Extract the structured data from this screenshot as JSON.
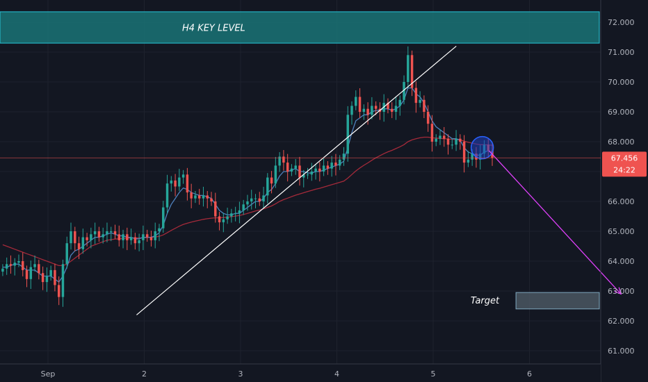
{
  "chart_data": {
    "type": "candlestick",
    "title": "",
    "xlabel": "",
    "ylabel": "",
    "ylim": [
      60.3,
      72.6
    ],
    "y_ticks": [
      "72.000",
      "71.000",
      "70.000",
      "69.000",
      "68.000",
      "67.000",
      "66.000",
      "65.000",
      "64.000",
      "63.000",
      "62.000",
      "61.000"
    ],
    "x_ticks": [
      {
        "label": "Sep",
        "t": 0
      },
      {
        "label": "2",
        "t": 1
      },
      {
        "label": "3",
        "t": 2
      },
      {
        "label": "4",
        "t": 3
      },
      {
        "label": "5",
        "t": 4
      },
      {
        "label": "6",
        "t": 5
      }
    ],
    "candle_interval_days": 0.04167,
    "first_candle_t": -0.47,
    "closes": [
      63.75,
      63.9,
      63.85,
      63.95,
      64.0,
      63.7,
      63.4,
      63.8,
      63.9,
      63.6,
      63.3,
      63.5,
      63.7,
      63.2,
      62.8,
      63.9,
      64.6,
      65.0,
      64.6,
      64.4,
      64.8,
      64.7,
      64.9,
      65.0,
      64.8,
      64.9,
      65.0,
      65.0,
      64.9,
      64.7,
      64.9,
      64.7,
      64.8,
      64.6,
      64.7,
      64.9,
      64.8,
      64.7,
      65.0,
      65.1,
      65.8,
      66.6,
      66.7,
      66.5,
      66.8,
      66.9,
      66.3,
      66.1,
      66.2,
      66.1,
      66.2,
      66.1,
      66.0,
      65.5,
      65.3,
      65.4,
      65.5,
      65.6,
      65.6,
      65.7,
      65.9,
      66.0,
      66.1,
      66.1,
      66.0,
      66.2,
      66.8,
      66.6,
      67.2,
      67.5,
      67.3,
      67.0,
      67.1,
      67.2,
      66.8,
      66.9,
      66.9,
      67.0,
      67.1,
      67.0,
      67.2,
      67.1,
      67.3,
      67.2,
      67.4,
      67.6,
      68.9,
      69.2,
      69.5,
      69.0,
      69.1,
      68.9,
      69.2,
      69.1,
      69.0,
      69.3,
      69.1,
      69.0,
      69.2,
      69.4,
      70.0,
      70.9,
      69.8,
      69.3,
      69.4,
      69.0,
      68.6,
      68.0,
      68.1,
      68.2,
      68.1,
      67.9,
      67.9,
      68.1,
      68.0,
      67.3,
      67.4,
      67.6,
      67.4,
      67.6,
      67.9,
      67.7,
      67.46
    ],
    "ma_fast": {
      "color": "#4f81bd",
      "values": [
        63.8,
        63.8,
        63.85,
        63.9,
        63.9,
        63.8,
        63.7,
        63.7,
        63.7,
        63.6,
        63.5,
        63.5,
        63.5,
        63.4,
        63.3,
        63.5,
        63.8,
        64.2,
        64.35,
        64.4,
        64.5,
        64.6,
        64.7,
        64.8,
        64.8,
        64.85,
        64.9,
        64.95,
        64.9,
        64.85,
        64.85,
        64.8,
        64.8,
        64.75,
        64.75,
        64.8,
        64.8,
        64.8,
        64.85,
        64.95,
        65.2,
        65.6,
        65.9,
        66.1,
        66.3,
        66.45,
        66.4,
        66.3,
        66.25,
        66.2,
        66.2,
        66.15,
        66.1,
        65.9,
        65.7,
        65.6,
        65.55,
        65.55,
        65.6,
        65.6,
        65.7,
        65.8,
        65.9,
        66.0,
        66.0,
        66.1,
        66.3,
        66.4,
        66.6,
        66.85,
        67.0,
        67.0,
        67.05,
        67.1,
        67.0,
        67.0,
        66.95,
        66.95,
        67.0,
        67.0,
        67.05,
        67.1,
        67.15,
        67.2,
        67.25,
        67.35,
        67.8,
        68.3,
        68.7,
        68.8,
        68.9,
        68.9,
        69.0,
        69.05,
        69.05,
        69.1,
        69.1,
        69.05,
        69.1,
        69.2,
        69.4,
        69.8,
        69.8,
        69.6,
        69.5,
        69.3,
        69.0,
        68.7,
        68.5,
        68.4,
        68.3,
        68.2,
        68.1,
        68.1,
        68.05,
        67.8,
        67.65,
        67.6,
        67.55,
        67.55,
        67.65,
        67.7,
        67.6
      ]
    },
    "ma_slow": {
      "color": "#a52a3a",
      "values": [
        64.55,
        64.5,
        64.45,
        64.4,
        64.35,
        64.3,
        64.25,
        64.2,
        64.15,
        64.1,
        64.05,
        64.0,
        63.95,
        63.9,
        63.85,
        63.85,
        63.9,
        64.0,
        64.1,
        64.2,
        64.3,
        64.4,
        64.5,
        64.55,
        64.6,
        64.65,
        64.7,
        64.72,
        64.74,
        64.75,
        64.76,
        64.77,
        64.78,
        64.78,
        64.78,
        64.78,
        64.79,
        64.8,
        64.81,
        64.83,
        64.88,
        64.95,
        65.03,
        65.1,
        65.17,
        65.23,
        65.27,
        65.31,
        65.34,
        65.37,
        65.4,
        65.42,
        65.44,
        65.45,
        65.45,
        65.46,
        65.47,
        65.49,
        65.51,
        65.53,
        65.56,
        65.6,
        65.64,
        65.68,
        65.71,
        65.75,
        65.8,
        65.85,
        65.92,
        66.0,
        66.06,
        66.11,
        66.16,
        66.21,
        66.25,
        66.29,
        66.33,
        66.37,
        66.41,
        66.44,
        66.48,
        66.52,
        66.56,
        66.6,
        66.64,
        66.68,
        66.78,
        66.9,
        67.02,
        67.12,
        67.21,
        67.29,
        67.38,
        67.46,
        67.53,
        67.6,
        67.66,
        67.71,
        67.77,
        67.83,
        67.9,
        68.0,
        68.06,
        68.1,
        68.13,
        68.15,
        68.15,
        68.13,
        68.12,
        68.11,
        68.1,
        68.09,
        68.08,
        68.07,
        68.06,
        68.02,
        67.98,
        67.95,
        67.92,
        67.9,
        67.9,
        67.89,
        67.88
      ]
    },
    "trendline": {
      "from": {
        "t": 0.92,
        "y": 62.2
      },
      "to": {
        "t": 4.24,
        "y": 71.2
      }
    },
    "key_level_zone": {
      "label": "H4 KEY LEVEL",
      "y_top": 72.35,
      "y_bottom": 71.3
    },
    "target_zone": {
      "label": "Target",
      "y_top": 62.95,
      "y_bottom": 62.4,
      "t_start": 4.86,
      "t_end": 6.7
    },
    "projection_arrow": {
      "from": {
        "t": 4.58,
        "y": 67.7
      },
      "to": {
        "t": 5.95,
        "y": 62.9
      },
      "color": "#e040fb"
    },
    "highlight_circle": {
      "t": 4.51,
      "y": 67.8
    },
    "current_price": {
      "value": "67.456",
      "countdown": "24:22",
      "y": 67.456
    },
    "colors": {
      "up": "#26a69a",
      "down": "#ef5350",
      "background": "#131722"
    }
  }
}
